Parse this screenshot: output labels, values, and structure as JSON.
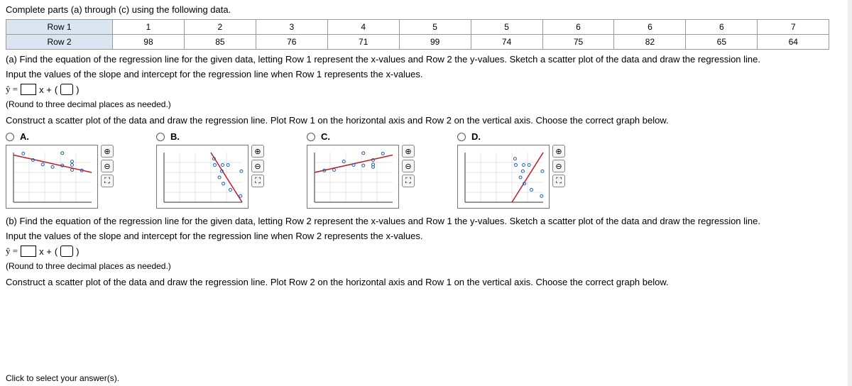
{
  "intro": "Complete parts (a) through (c) using the following data.",
  "table": {
    "row1_label": "Row 1",
    "row2_label": "Row 2",
    "row1": [
      "1",
      "2",
      "3",
      "4",
      "5",
      "5",
      "6",
      "6",
      "6",
      "7"
    ],
    "row2": [
      "98",
      "85",
      "76",
      "71",
      "99",
      "74",
      "75",
      "82",
      "65",
      "64"
    ]
  },
  "partA": {
    "text1": "(a) Find the equation of the regression line for the given data, letting Row 1 represent the x-values and Row 2 the y-values. Sketch a scatter plot of the data and draw the regression line.",
    "text2": "Input the values of the slope and intercept for the regression line when Row 1 represents the x-values.",
    "eq_prefix": "ŷ =",
    "eq_mid": "x +",
    "note": "(Round to three decimal places as needed.)",
    "text3": "Construct a scatter plot of the data and draw the regression line. Plot Row 1 on the horizontal axis and Row 2 on the vertical axis. Choose the correct graph below."
  },
  "options": {
    "a": "A.",
    "b": "B.",
    "c": "C.",
    "d": "D."
  },
  "partB": {
    "text1": "(b) Find the equation of the regression line for the given data, letting Row 2 represent the x-values and Row 1 the y-values. Sketch a scatter plot of the data and draw the regression line.",
    "text2": "Input the values of the slope and intercept for the regression line when Row 2 represents the x-values.",
    "eq_prefix": "ŷ =",
    "eq_mid": "x +",
    "note": "(Round to three decimal places as needed.)",
    "text3": "Construct a scatter plot of the data and draw the regression line. Plot Row 2 on the horizontal axis and Row 1 on the vertical axis. Choose the correct graph below."
  },
  "footer": "Click to select your answer(s).",
  "plots": {
    "axis_color": "#333",
    "grid_color": "#ccc",
    "point_color": "#1a5fb4",
    "line_color": "#c01c28",
    "xmax_a": 8,
    "ymax_a": 100,
    "xmax_b": 100,
    "ymax_b": 8,
    "xmax_c": 8,
    "ymax_c": 100,
    "xmax_d": 100,
    "ymax_d": 8,
    "pointsA": [
      [
        1,
        98
      ],
      [
        2,
        85
      ],
      [
        3,
        76
      ],
      [
        4,
        71
      ],
      [
        5,
        99
      ],
      [
        5,
        74
      ],
      [
        6,
        75
      ],
      [
        6,
        82
      ],
      [
        6,
        65
      ],
      [
        7,
        64
      ]
    ],
    "lineA": [
      [
        0,
        95
      ],
      [
        8,
        60
      ]
    ],
    "pointsB": [
      [
        98,
        1
      ],
      [
        85,
        2
      ],
      [
        76,
        3
      ],
      [
        71,
        4
      ],
      [
        99,
        5
      ],
      [
        74,
        5
      ],
      [
        75,
        6
      ],
      [
        82,
        6
      ],
      [
        65,
        6
      ],
      [
        64,
        7
      ]
    ],
    "lineB": [
      [
        60,
        8
      ],
      [
        100,
        0
      ]
    ],
    "pointsC": [
      [
        1,
        64
      ],
      [
        2,
        65
      ],
      [
        3,
        82
      ],
      [
        4,
        75
      ],
      [
        5,
        74
      ],
      [
        5,
        99
      ],
      [
        6,
        71
      ],
      [
        6,
        76
      ],
      [
        6,
        85
      ],
      [
        7,
        98
      ]
    ],
    "lineC": [
      [
        0,
        60
      ],
      [
        8,
        95
      ]
    ],
    "pointsD": [
      [
        64,
        7
      ],
      [
        65,
        6
      ],
      [
        82,
        6
      ],
      [
        75,
        6
      ],
      [
        74,
        5
      ],
      [
        99,
        5
      ],
      [
        71,
        4
      ],
      [
        76,
        3
      ],
      [
        85,
        2
      ],
      [
        98,
        1
      ]
    ],
    "lineD": [
      [
        60,
        0
      ],
      [
        100,
        8
      ]
    ]
  },
  "tools": {
    "zoom_in": "⊕",
    "zoom_out": "⊖",
    "expand": "⛶"
  }
}
